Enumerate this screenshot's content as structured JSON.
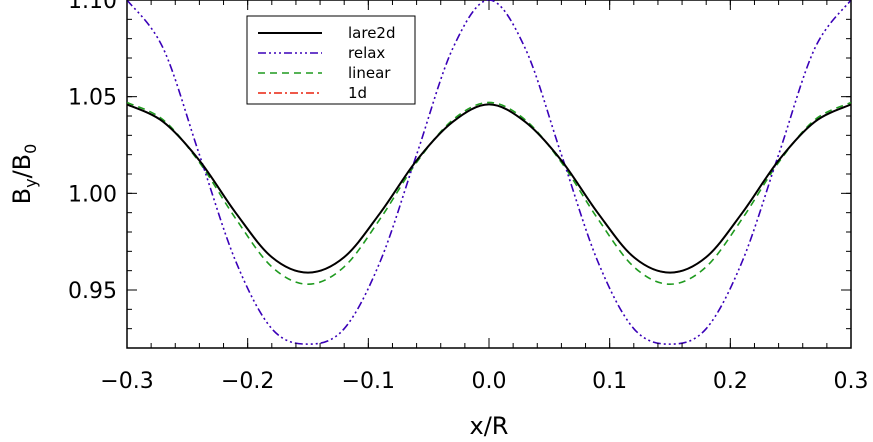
{
  "chart_data": {
    "type": "line",
    "title": "",
    "xlabel": "x/R",
    "ylabel_main": "B",
    "ylabel_sub1": "y",
    "ylabel_sep": "/B",
    "ylabel_sub2": "0",
    "xlim": [
      -0.3,
      0.3
    ],
    "ylim": [
      0.92,
      1.1
    ],
    "xticks": [
      -0.3,
      -0.2,
      -0.1,
      0.0,
      0.1,
      0.2,
      0.3
    ],
    "xtick_labels": [
      "−0.3",
      "−0.2",
      "−0.1",
      "0.0",
      "0.1",
      "0.2",
      "0.3"
    ],
    "yticks": [
      0.95,
      1.0,
      1.05,
      1.1
    ],
    "ytick_labels": [
      "0.95",
      "1.00",
      "1.05",
      "1.10"
    ],
    "grid": false,
    "legend_position": "top-left",
    "x": [
      -0.3,
      -0.27,
      -0.24,
      -0.21,
      -0.18,
      -0.15,
      -0.12,
      -0.09,
      -0.06,
      -0.03,
      0.0,
      0.03,
      0.06,
      0.09,
      0.12,
      0.15,
      0.18,
      0.21,
      0.24,
      0.27,
      0.3
    ],
    "series": [
      {
        "name": "lare2d",
        "color": "#000000",
        "dash": "solid",
        "values": [
          1.046,
          1.037,
          1.017,
          0.99,
          0.967,
          0.959,
          0.967,
          0.99,
          1.017,
          1.037,
          1.046,
          1.037,
          1.017,
          0.99,
          0.967,
          0.959,
          0.967,
          0.99,
          1.017,
          1.037,
          1.046
        ]
      },
      {
        "name": "relax",
        "color": "#3a00b8",
        "dash": "dash-dot-dot-dot",
        "values": [
          1.1,
          1.075,
          1.02,
          0.965,
          0.93,
          0.922,
          0.93,
          0.965,
          1.02,
          1.075,
          1.1,
          1.075,
          1.02,
          0.965,
          0.93,
          0.922,
          0.93,
          0.965,
          1.02,
          1.075,
          1.1
        ]
      },
      {
        "name": "linear",
        "color": "#1f9a1f",
        "dash": "dashed",
        "values": [
          1.047,
          1.038,
          1.016,
          0.987,
          0.962,
          0.953,
          0.962,
          0.987,
          1.016,
          1.038,
          1.047,
          1.038,
          1.016,
          0.987,
          0.962,
          0.953,
          0.962,
          0.987,
          1.016,
          1.038,
          1.047
        ]
      },
      {
        "name": "1d",
        "color": "#e8220e",
        "dash": "dash-dot",
        "values": [
          1.046,
          1.037,
          1.017,
          0.99,
          0.967,
          0.959,
          0.967,
          0.99,
          1.017,
          1.037,
          1.046,
          1.037,
          1.017,
          0.99,
          0.967,
          0.959,
          0.967,
          0.99,
          1.017,
          1.037,
          1.046
        ]
      }
    ]
  }
}
